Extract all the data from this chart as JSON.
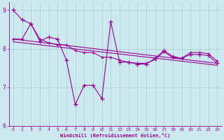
{
  "background_color": "#cbe9ef",
  "line_color": "#990099",
  "grid_color": "#aacccc",
  "xlabel": "Windchill (Refroidissement éolien,°C)",
  "xlabel_color": "#990099",
  "xlim": [
    -0.5,
    23.5
  ],
  "ylim": [
    6,
    9.2
  ],
  "yticks": [
    6,
    7,
    8,
    9
  ],
  "xticks": [
    0,
    1,
    2,
    3,
    4,
    5,
    6,
    7,
    8,
    9,
    10,
    11,
    12,
    13,
    14,
    15,
    16,
    17,
    18,
    19,
    20,
    21,
    22,
    23
  ],
  "series_zigzag": {
    "x": [
      0,
      1,
      2,
      3,
      4,
      5,
      6,
      7,
      8,
      9,
      10,
      11,
      12,
      13,
      14,
      15,
      16,
      17,
      18,
      19,
      20,
      21,
      22,
      23
    ],
    "y": [
      9.0,
      8.75,
      8.65,
      8.2,
      8.3,
      8.25,
      7.7,
      6.55,
      7.05,
      7.05,
      6.7,
      8.7,
      7.65,
      7.65,
      7.6,
      7.6,
      7.75,
      7.95,
      7.8,
      7.75,
      7.85,
      7.85,
      7.82,
      7.62
    ]
  },
  "series_smooth": {
    "x": [
      0,
      1,
      2,
      3,
      4,
      5,
      6,
      7,
      8,
      9,
      10,
      11,
      12,
      13,
      14,
      15,
      16,
      17,
      18,
      19,
      20,
      21,
      22,
      23
    ],
    "y": [
      8.25,
      8.25,
      8.65,
      8.25,
      8.15,
      8.1,
      8.1,
      7.95,
      7.9,
      7.9,
      7.78,
      7.78,
      7.7,
      7.65,
      7.62,
      7.62,
      7.72,
      7.92,
      7.77,
      7.75,
      7.9,
      7.9,
      7.87,
      7.68
    ]
  },
  "series_trend1": {
    "x": [
      0,
      23
    ],
    "y": [
      8.25,
      7.62
    ]
  },
  "series_trend2": {
    "x": [
      0,
      23
    ],
    "y": [
      8.18,
      7.57
    ]
  }
}
